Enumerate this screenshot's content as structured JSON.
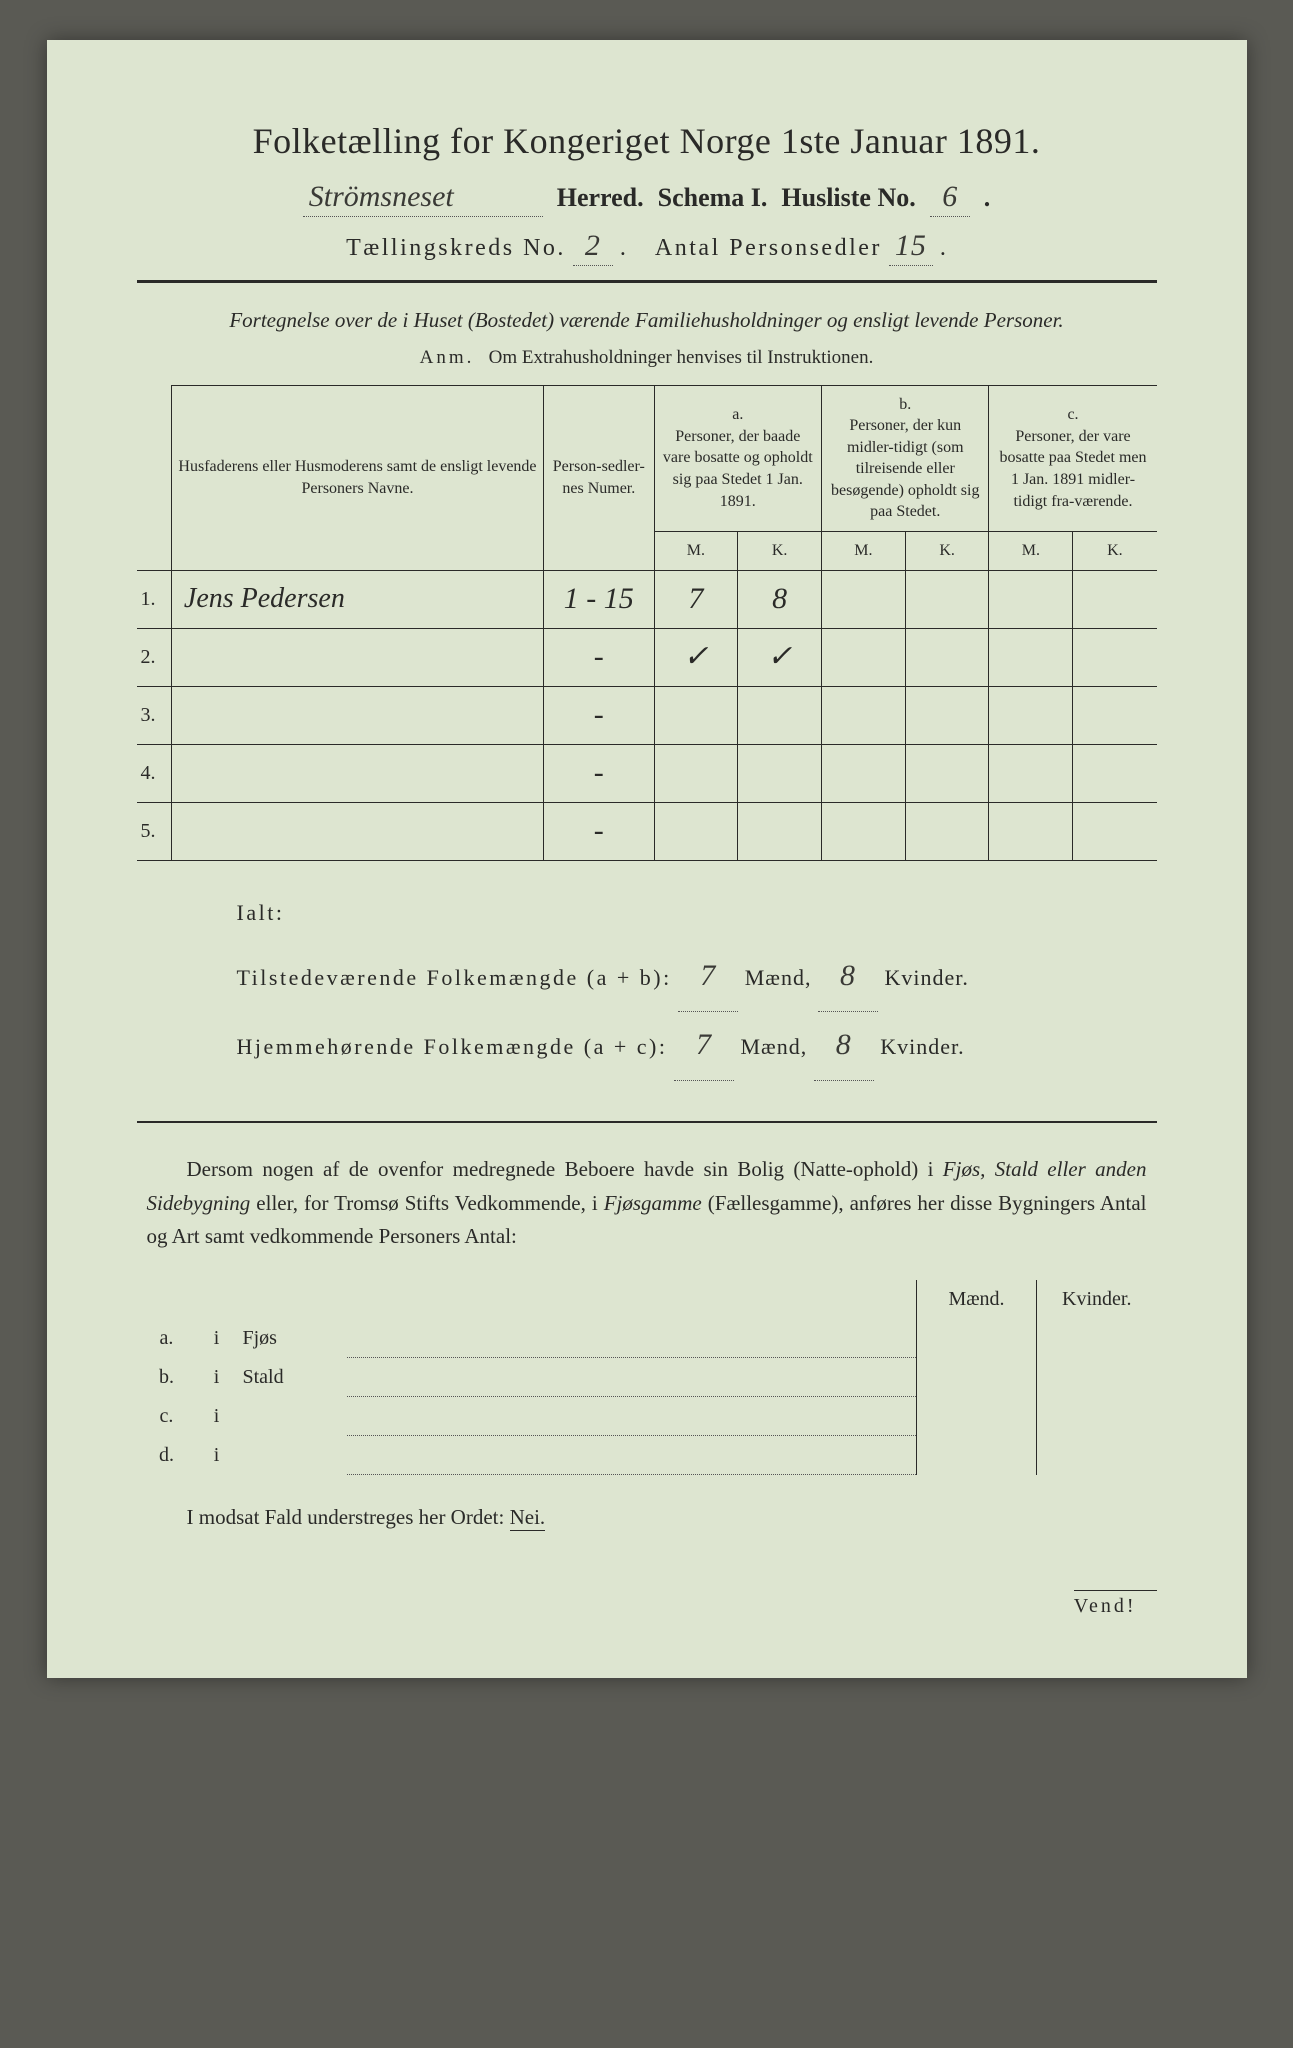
{
  "header": {
    "title": "Folketælling for Kongeriget Norge 1ste Januar 1891.",
    "herred_value": "Strömsneset",
    "herred_label": "Herred.",
    "schema_label": "Schema I.",
    "husliste_label": "Husliste No.",
    "husliste_value": "6",
    "kreds_label": "Tællingskreds No.",
    "kreds_value": "2",
    "personsedler_label": "Antal Personsedler",
    "personsedler_value": "15"
  },
  "intro": {
    "line": "Fortegnelse over de i Huset (Bostedet) værende Familiehusholdninger og ensligt levende Personer.",
    "anm_label": "Anm.",
    "anm_text": "Om Extrahusholdninger henvises til Instruktionen."
  },
  "table": {
    "col_names": "Husfaderens eller Husmoderens samt de ensligt levende Personers Navne.",
    "col_numer": "Person-sedler-nes Numer.",
    "col_a_label": "a.",
    "col_a": "Personer, der baade vare bosatte og opholdt sig paa Stedet 1 Jan. 1891.",
    "col_b_label": "b.",
    "col_b": "Personer, der kun midler-tidigt (som tilreisende eller besøgende) opholdt sig paa Stedet.",
    "col_c_label": "c.",
    "col_c": "Personer, der vare bosatte paa Stedet men 1 Jan. 1891 midler-tidigt fra-værende.",
    "M": "M.",
    "K": "K.",
    "rows": [
      {
        "n": "1.",
        "name": "Jens Pedersen",
        "numer": "1 - 15",
        "aM": "7",
        "aK": "8",
        "bM": "",
        "bK": "",
        "cM": "",
        "cK": ""
      },
      {
        "n": "2.",
        "name": "",
        "numer": "-",
        "aM": "✓",
        "aK": "✓",
        "bM": "",
        "bK": "",
        "cM": "",
        "cK": ""
      },
      {
        "n": "3.",
        "name": "",
        "numer": "-",
        "aM": "",
        "aK": "",
        "bM": "",
        "bK": "",
        "cM": "",
        "cK": ""
      },
      {
        "n": "4.",
        "name": "",
        "numer": "-",
        "aM": "",
        "aK": "",
        "bM": "",
        "bK": "",
        "cM": "",
        "cK": ""
      },
      {
        "n": "5.",
        "name": "",
        "numer": "-",
        "aM": "",
        "aK": "",
        "bM": "",
        "bK": "",
        "cM": "",
        "cK": ""
      }
    ]
  },
  "totals": {
    "ialt": "Ialt:",
    "line1_label": "Tilstedeværende Folkemængde (a + b):",
    "line1_m": "7",
    "line1_k": "8",
    "line2_label": "Hjemmehørende Folkemængde (a + c):",
    "line2_m": "7",
    "line2_k": "8",
    "maend": "Mænd,",
    "kvinder": "Kvinder."
  },
  "paragraph": "Dersom nogen af de ovenfor medregnede Beboere havde sin Bolig (Natte-ophold) i Fjøs, Stald eller anden Sidebygning eller, for Tromsø Stifts Vedkommende, i Fjøsgamme (Fællesgamme), anføres her disse Bygningers Antal og Art samt vedkommende Personers Antal:",
  "side": {
    "maend": "Mænd.",
    "kvinder": "Kvinder.",
    "rows": [
      {
        "l": "a.",
        "i": "i",
        "k": "Fjøs"
      },
      {
        "l": "b.",
        "i": "i",
        "k": "Stald"
      },
      {
        "l": "c.",
        "i": "i",
        "k": ""
      },
      {
        "l": "d.",
        "i": "i",
        "k": ""
      }
    ]
  },
  "closing": {
    "text": "I modsat Fald understreges her Ordet:",
    "nei": "Nei."
  },
  "vend": "Vend!",
  "colors": {
    "paper": "#dde5d0",
    "ink": "#2a2a28",
    "handwriting": "#3a3a36",
    "frame": "#5a5a54"
  }
}
